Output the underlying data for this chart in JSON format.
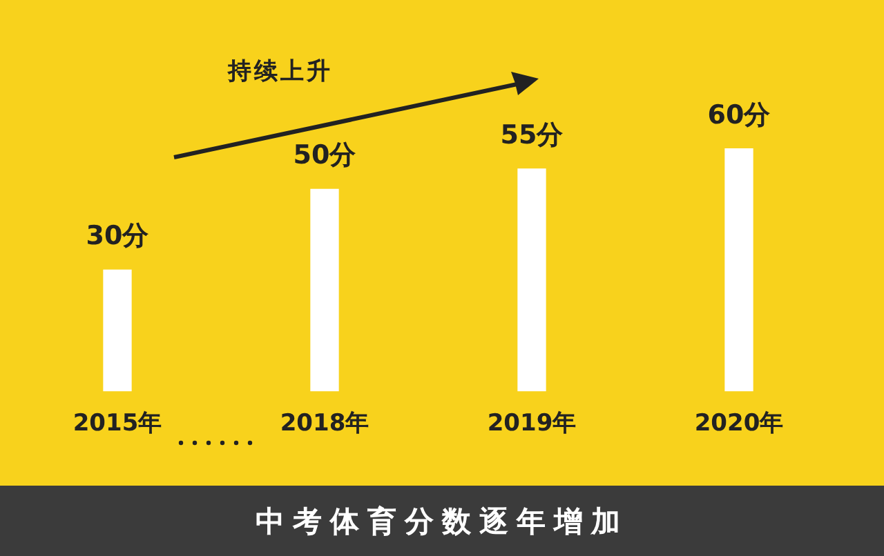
{
  "chart_data": {
    "type": "bar",
    "title": "中考体育分数逐年增加",
    "categories": [
      "2015年",
      "2018年",
      "2019年",
      "2020年"
    ],
    "values": [
      30,
      50,
      55,
      60
    ],
    "value_labels": [
      "30分",
      "50分",
      "55分",
      "60分"
    ],
    "color": "#ffffff",
    "annotations": [
      "持续上升"
    ],
    "grid": false,
    "legend": false,
    "tick_labels": "x"
  }
}
